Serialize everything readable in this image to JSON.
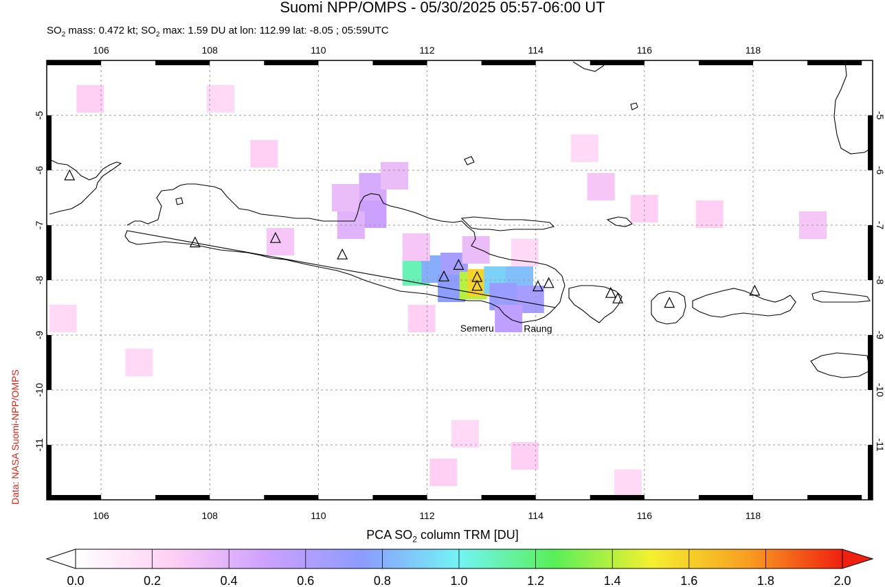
{
  "header": {
    "title": "Suomi NPP/OMPS - 05/30/2025 05:57-06:00 UT",
    "subtitle": {
      "mass_prefix": "SO",
      "mass_sub": "2",
      "mass_text": " mass: 0.472 kt; SO",
      "max_sub": "2",
      "max_text": " max: 1.59 DU at lon: 112.99 lat: -8.05 ; 05:59UTC"
    }
  },
  "credit": "Data: NASA Suomi-NPP/OMPS",
  "map": {
    "lon_ticks": [
      "106",
      "108",
      "110",
      "112",
      "114",
      "116",
      "118"
    ],
    "lat_ticks": [
      "-5",
      "-6",
      "-7",
      "-8",
      "-9",
      "-10",
      "-11"
    ],
    "lon_range": [
      105,
      120.2
    ],
    "lat_range": [
      -4.0,
      -12.0
    ],
    "volcano_labels": [
      {
        "name": "Semeru",
        "lon": 112.92,
        "lat": -8.11
      },
      {
        "name": "Raung",
        "lon": 114.04,
        "lat": -8.12
      }
    ],
    "volcanoes": [
      {
        "lon": 105.42,
        "lat": -6.1
      },
      {
        "lon": 107.73,
        "lat": -7.32
      },
      {
        "lon": 109.21,
        "lat": -7.24
      },
      {
        "lon": 110.44,
        "lat": -7.54
      },
      {
        "lon": 112.31,
        "lat": -7.94
      },
      {
        "lon": 112.58,
        "lat": -7.73
      },
      {
        "lon": 112.92,
        "lat": -7.95
      },
      {
        "lon": 112.92,
        "lat": -8.11
      },
      {
        "lon": 114.04,
        "lat": -8.12
      },
      {
        "lon": 114.24,
        "lat": -8.06
      },
      {
        "lon": 115.38,
        "lat": -8.24
      },
      {
        "lon": 115.51,
        "lat": -8.34
      },
      {
        "lon": 116.46,
        "lat": -8.42
      },
      {
        "lon": 118.03,
        "lat": -8.2
      }
    ],
    "so2_pixels": [
      {
        "lon": 111.8,
        "lat": -7.85,
        "du": 1.1
      },
      {
        "lon": 112.15,
        "lat": -7.8,
        "du": 0.8
      },
      {
        "lon": 112.5,
        "lat": -7.75,
        "du": 0.65
      },
      {
        "lon": 112.45,
        "lat": -8.15,
        "du": 0.75
      },
      {
        "lon": 112.85,
        "lat": -8.1,
        "du": 1.4
      },
      {
        "lon": 113.0,
        "lat": -8.05,
        "du": 1.59
      },
      {
        "lon": 113.3,
        "lat": -8.0,
        "du": 0.9
      },
      {
        "lon": 113.7,
        "lat": -8.0,
        "du": 0.85
      },
      {
        "lon": 113.4,
        "lat": -8.3,
        "du": 0.7
      },
      {
        "lon": 113.9,
        "lat": -8.35,
        "du": 0.65
      },
      {
        "lon": 113.5,
        "lat": -8.7,
        "du": 0.55
      },
      {
        "lon": 111.0,
        "lat": -6.3,
        "du": 0.45
      },
      {
        "lon": 111.0,
        "lat": -6.8,
        "du": 0.5
      },
      {
        "lon": 110.6,
        "lat": -7.0,
        "du": 0.4
      },
      {
        "lon": 110.5,
        "lat": -6.5,
        "du": 0.35
      },
      {
        "lon": 111.4,
        "lat": -6.1,
        "du": 0.35
      },
      {
        "lon": 111.8,
        "lat": -7.4,
        "du": 0.3
      },
      {
        "lon": 109.3,
        "lat": -7.3,
        "du": 0.3
      },
      {
        "lon": 116.0,
        "lat": -6.7,
        "du": 0.25
      },
      {
        "lon": 117.2,
        "lat": -6.8,
        "du": 0.25
      },
      {
        "lon": 119.1,
        "lat": -7.0,
        "du": 0.3
      },
      {
        "lon": 115.2,
        "lat": -6.3,
        "du": 0.3
      },
      {
        "lon": 114.9,
        "lat": -5.6,
        "du": 0.2
      },
      {
        "lon": 109.0,
        "lat": -5.7,
        "du": 0.25
      },
      {
        "lon": 105.8,
        "lat": -4.7,
        "du": 0.25
      },
      {
        "lon": 108.2,
        "lat": -4.7,
        "du": 0.2
      },
      {
        "lon": 113.8,
        "lat": -7.5,
        "du": 0.2
      },
      {
        "lon": 112.9,
        "lat": -7.45,
        "du": 0.35
      },
      {
        "lon": 112.3,
        "lat": -11.5,
        "du": 0.25
      },
      {
        "lon": 115.7,
        "lat": -11.7,
        "du": 0.2
      },
      {
        "lon": 113.8,
        "lat": -11.2,
        "du": 0.25
      },
      {
        "lon": 112.7,
        "lat": -10.8,
        "du": 0.2
      },
      {
        "lon": 106.7,
        "lat": -9.5,
        "du": 0.2
      },
      {
        "lon": 105.3,
        "lat": -8.7,
        "du": 0.2
      },
      {
        "lon": 111.9,
        "lat": -8.7,
        "du": 0.25
      }
    ]
  },
  "colorbar": {
    "label_pre": "PCA SO",
    "label_sub": "2",
    "label_post": " column TRM [DU]",
    "ticks": [
      "0.0",
      "0.2",
      "0.4",
      "0.6",
      "0.8",
      "1.0",
      "1.2",
      "1.4",
      "1.6",
      "1.8",
      "2.0"
    ],
    "range": [
      0.0,
      2.0
    ],
    "colors": [
      "#ffffff",
      "#ffd0f4",
      "#cca0ff",
      "#8c9cff",
      "#72f4f4",
      "#58f058",
      "#f4f030",
      "#f8a020",
      "#f02010"
    ]
  }
}
